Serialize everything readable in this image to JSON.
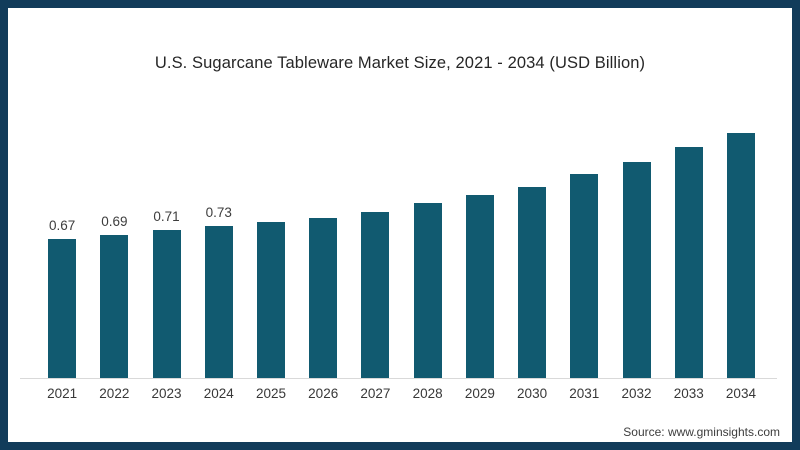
{
  "frame": {
    "border_color": "#123c5a",
    "background_color": "#ffffff"
  },
  "chart_data": {
    "type": "bar",
    "title": "U.S. Sugarcane Tableware Market Size, 2021 - 2034 (USD Billion)",
    "categories": [
      "2021",
      "2022",
      "2023",
      "2024",
      "2025",
      "2026",
      "2027",
      "2028",
      "2029",
      "2030",
      "2031",
      "2032",
      "2033",
      "2034"
    ],
    "values": [
      0.67,
      0.69,
      0.71,
      0.73,
      0.75,
      0.77,
      0.8,
      0.84,
      0.88,
      0.92,
      0.98,
      1.04,
      1.11,
      1.18
    ],
    "visible_value_labels": [
      "0.67",
      "0.69",
      "0.71",
      "0.73",
      "",
      "",
      "",
      "",
      "",
      "",
      "",
      "",
      "",
      ""
    ],
    "xlabel": "",
    "ylabel": "",
    "ylim": [
      0,
      1.3
    ],
    "grid": false,
    "legend": "none",
    "bar_color": "#115a70",
    "axis_line_color": "#d9d9d9"
  },
  "footer": {
    "source_label": "Source: www.gminsights.com"
  }
}
